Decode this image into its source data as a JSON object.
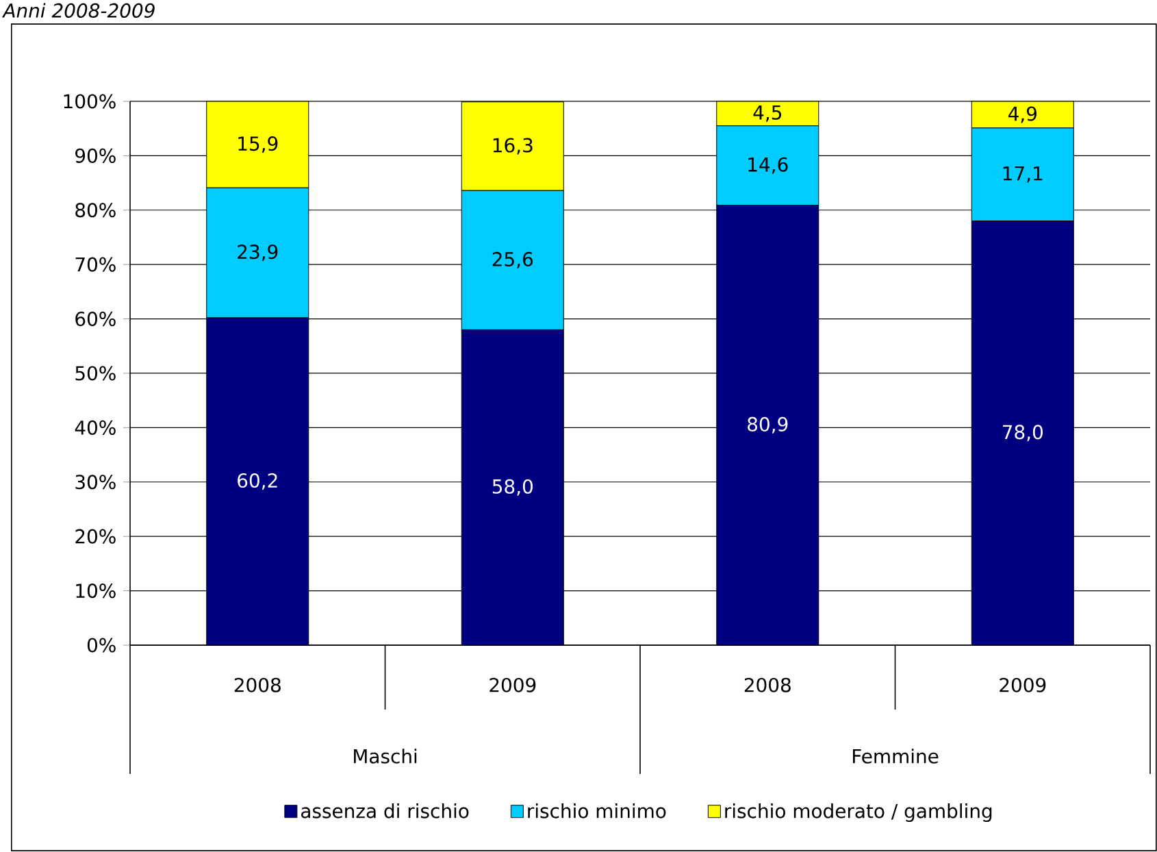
{
  "chart_data": {
    "type": "bar",
    "stacked": true,
    "subtitle": "*Anni 2008-2009*",
    "categories": [
      "2008",
      "2009",
      "2008",
      "2009"
    ],
    "annotations": [
      "Maschi",
      "Femmine"
    ],
    "series": [
      {
        "name": "assenza di rischio",
        "color": "#000080",
        "values": [
          60.2,
          58.0,
          80.9,
          78.0
        ],
        "value_labels": [
          "60,2",
          "58,0",
          "80,9",
          "78,0"
        ]
      },
      {
        "name": "rischio minimo",
        "color": "#00ccff",
        "values": [
          23.9,
          25.6,
          14.6,
          17.1
        ],
        "value_labels": [
          "23,9",
          "25,6",
          "14,6",
          "17,1"
        ]
      },
      {
        "name": "rischio moderato / gambling",
        "color": "#ffff00",
        "values": [
          15.9,
          16.3,
          4.5,
          4.9
        ],
        "value_labels": [
          "15,9",
          "16,3",
          "4,5",
          "4,9"
        ]
      }
    ],
    "ylim": [
      0,
      100
    ],
    "yticks": [
      {
        "value": 0,
        "label": "0%"
      },
      {
        "value": 10,
        "label": "10%"
      },
      {
        "value": 20,
        "label": "20%"
      },
      {
        "value": 30,
        "label": "30%"
      },
      {
        "value": 40,
        "label": "40%"
      },
      {
        "value": 50,
        "label": "50%"
      },
      {
        "value": 60,
        "label": "60%"
      },
      {
        "value": 70,
        "label": "70%"
      },
      {
        "value": 80,
        "label": "80%"
      },
      {
        "value": 90,
        "label": "90%"
      },
      {
        "value": 100,
        "label": "100%"
      }
    ],
    "grid": "y",
    "legend": "bottom"
  }
}
